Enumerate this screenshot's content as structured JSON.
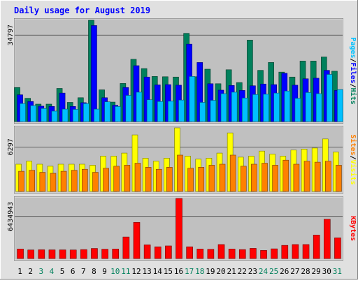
{
  "title": "Daily usage for August 2019",
  "colors": {
    "hits": "#00805c",
    "files": "#0000ff",
    "pages": "#00c0ff",
    "visits": "#ffff00",
    "sites": "#ff8000",
    "kbytes": "#ff0000",
    "plot_bg": "#c0c0c0",
    "frame_bg": "#e0e0e0",
    "title_color": "#0000ff",
    "weekend_day": "#00805c",
    "weekday": "#000000"
  },
  "days": [
    "1",
    "2",
    "3",
    "4",
    "5",
    "6",
    "7",
    "8",
    "9",
    "10",
    "11",
    "12",
    "13",
    "14",
    "15",
    "16",
    "17",
    "18",
    "19",
    "20",
    "21",
    "22",
    "23",
    "24",
    "25",
    "26",
    "27",
    "28",
    "29",
    "30",
    "31"
  ],
  "weekend_days": [
    "3",
    "4",
    "10",
    "11",
    "17",
    "18",
    "24",
    "25",
    "31"
  ],
  "chart_data": [
    {
      "type": "bar",
      "name": "hits-files-pages",
      "ymax_label": "34797",
      "ylim": [
        0,
        34797
      ],
      "legend": [
        "Pages",
        "/",
        "Files",
        "/",
        "Hits"
      ],
      "series": [
        {
          "name": "Hits",
          "color": "#00805c",
          "values": [
            11700,
            8000,
            6000,
            6000,
            11400,
            6600,
            8200,
            34797,
            10900,
            6700,
            13100,
            21400,
            18200,
            15500,
            15400,
            15300,
            30300,
            15400,
            18000,
            13000,
            17800,
            13400,
            28000,
            17600,
            20300,
            17000,
            15300,
            20800,
            20800,
            22200,
            17300
          ]
        },
        {
          "name": "Files",
          "color": "#0000ff",
          "values": [
            9200,
            6900,
            5300,
            5200,
            9800,
            5200,
            6500,
            33000,
            8200,
            5600,
            11700,
            19200,
            15300,
            12600,
            12700,
            12500,
            26600,
            20300,
            13000,
            10800,
            12400,
            10700,
            12300,
            12900,
            12700,
            16600,
            12500,
            14700,
            14900,
            17600,
            10700
          ]
        },
        {
          "name": "Pages",
          "color": "#00c0ff",
          "values": [
            6200,
            5500,
            4500,
            3600,
            4300,
            4200,
            6200,
            4300,
            6800,
            5200,
            9000,
            10100,
            7500,
            6900,
            7000,
            7400,
            15500,
            6600,
            7300,
            9600,
            10100,
            8100,
            9300,
            9400,
            9800,
            10500,
            8000,
            10000,
            9600,
            16200,
            11000
          ]
        }
      ]
    },
    {
      "type": "bar",
      "name": "visits-sites",
      "ymax_label": "6297",
      "ylim": [
        0,
        6297
      ],
      "legend": [
        "Sites",
        "/",
        "Visits"
      ],
      "series": [
        {
          "name": "Visits",
          "color": "#ffff00",
          "values": [
            2700,
            3000,
            2700,
            2500,
            2700,
            2700,
            2700,
            2600,
            3500,
            3500,
            3800,
            5600,
            3300,
            3000,
            3300,
            6297,
            3500,
            3200,
            3300,
            3800,
            5800,
            3400,
            3500,
            4000,
            3700,
            3500,
            4100,
            4200,
            4300,
            5200,
            3900
          ]
        },
        {
          "name": "Sites",
          "color": "#ff8000",
          "values": [
            2000,
            2100,
            1900,
            1800,
            2000,
            2100,
            2200,
            1900,
            2300,
            2500,
            2600,
            2800,
            2400,
            2200,
            2400,
            3600,
            2300,
            2400,
            2600,
            2700,
            3600,
            2500,
            2700,
            2800,
            2600,
            3100,
            2700,
            3000,
            2900,
            3000,
            2600
          ]
        }
      ]
    },
    {
      "type": "bar",
      "name": "kbytes",
      "ymax_label": "6434943",
      "ylim": [
        0,
        6434943
      ],
      "legend": [
        "KBytes"
      ],
      "series": [
        {
          "name": "KBytes",
          "color": "#ff0000",
          "values": [
            1020000,
            920000,
            940000,
            930000,
            930000,
            920000,
            960000,
            1080000,
            1000000,
            1020000,
            2310000,
            3870000,
            1470000,
            1260000,
            1350000,
            6434943,
            1260000,
            1020000,
            990000,
            1500000,
            1020000,
            960000,
            1090000,
            870000,
            1040000,
            1410000,
            1500000,
            1500000,
            2520000,
            4210000,
            2220000
          ]
        }
      ]
    }
  ]
}
